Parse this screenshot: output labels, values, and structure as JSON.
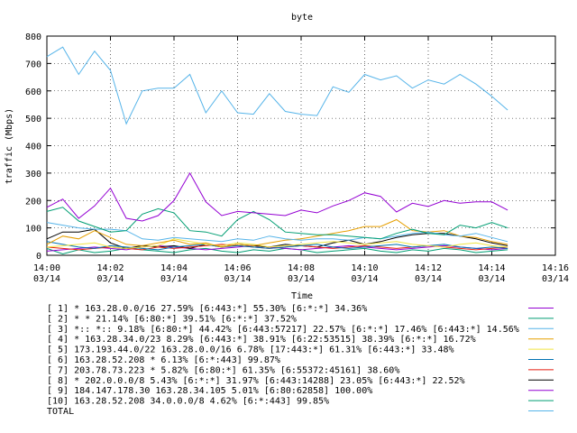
{
  "chart_data": {
    "type": "line",
    "title": "byte",
    "xlabel": "Time",
    "ylabel": "traffic (Mbps)",
    "ylim": [
      0,
      800
    ],
    "xlim": [
      0,
      16
    ],
    "grid": true,
    "legend_placement": "bottom",
    "x_tick_values": [
      0,
      2,
      4,
      6,
      8,
      10,
      12,
      14,
      16
    ],
    "x_tick_labels": [
      [
        "14:00",
        "03/14"
      ],
      [
        "14:02",
        "03/14"
      ],
      [
        "14:04",
        "03/14"
      ],
      [
        "14:06",
        "03/14"
      ],
      [
        "14:08",
        "03/14"
      ],
      [
        "14:10",
        "03/14"
      ],
      [
        "14:12",
        "03/14"
      ],
      [
        "14:14",
        "03/14"
      ],
      [
        "14:16",
        "03/14"
      ]
    ],
    "y_ticks": [
      0,
      100,
      200,
      300,
      400,
      500,
      600,
      700,
      800
    ],
    "x": [
      0,
      0.5,
      1,
      1.5,
      2,
      2.5,
      3,
      3.5,
      4,
      4.5,
      5,
      5.5,
      6,
      6.5,
      7,
      7.5,
      8,
      8.5,
      9,
      9.5,
      10,
      10.5,
      11,
      11.5,
      12,
      12.5,
      13,
      13.5,
      14,
      14.5
    ],
    "series": [
      {
        "name": "[ 1] * 163.28.0.0/16 27.59%  [6:443:*] 55.30% [6:*:*] 34.36%",
        "color": "#9400d3",
        "values": [
          175,
          205,
          135,
          180,
          245,
          135,
          125,
          145,
          200,
          300,
          195,
          145,
          160,
          155,
          150,
          145,
          165,
          155,
          180,
          200,
          228,
          215,
          158,
          190,
          178,
          200,
          190,
          195,
          195,
          165
        ]
      },
      {
        "name": "[ 2] * * 21.14%  [6:80:*] 39.51% [6:*:*] 37.52%",
        "color": "#009e73",
        "values": [
          160,
          175,
          125,
          105,
          85,
          90,
          150,
          170,
          155,
          90,
          85,
          70,
          130,
          160,
          130,
          85,
          80,
          75,
          75,
          70,
          65,
          60,
          80,
          95,
          80,
          75,
          110,
          100,
          120,
          100
        ]
      },
      {
        "name": "[ 3] *:: *:: 9.18%  [6:80:*] 44.42% [6:443:57217] 22.57% [6:*:*] 17.46% [6:443:*] 14.56%",
        "color": "#56b4e9",
        "values": [
          120,
          110,
          100,
          95,
          95,
          90,
          60,
          55,
          65,
          60,
          55,
          50,
          60,
          55,
          70,
          60,
          55,
          60,
          60,
          55,
          65,
          60,
          70,
          80,
          85,
          75,
          70,
          80,
          65,
          50
        ]
      },
      {
        "name": "[ 4] * 163.28.34.0/23 8.29%  [6:443:*] 38.91% [6:22:53515] 38.39% [6:*:*] 16.72%",
        "color": "#e69f00",
        "values": [
          40,
          70,
          60,
          90,
          65,
          40,
          35,
          45,
          55,
          40,
          45,
          30,
          40,
          35,
          45,
          55,
          60,
          70,
          80,
          90,
          105,
          105,
          130,
          90,
          85,
          90,
          70,
          65,
          50,
          40
        ]
      },
      {
        "name": "[ 5] 173.193.44.0/22 163.28.0.0/16 6.78%  [17:443:*] 61.31% [6:443:*] 33.48%",
        "color": "#f0e442",
        "values": [
          30,
          35,
          40,
          45,
          30,
          25,
          30,
          35,
          60,
          50,
          40,
          35,
          45,
          40,
          30,
          35,
          40,
          45,
          50,
          45,
          40,
          45,
          50,
          40,
          35,
          30,
          40,
          45,
          35,
          30
        ]
      },
      {
        "name": "[ 6] 163.28.52.208 * 6.13%  [6:*:443] 99.87%",
        "color": "#0072b2",
        "values": [
          50,
          40,
          30,
          25,
          35,
          30,
          25,
          20,
          30,
          35,
          40,
          30,
          35,
          30,
          25,
          30,
          35,
          40,
          30,
          25,
          30,
          35,
          40,
          30,
          35,
          40,
          30,
          25,
          30,
          25
        ]
      },
      {
        "name": "[ 7] 203.78.73.223 * 5.82%  [6:80:*] 61.35% [6:55372:45161] 38.60%",
        "color": "#e51e10",
        "values": [
          30,
          25,
          20,
          25,
          30,
          25,
          20,
          30,
          25,
          30,
          35,
          40,
          35,
          30,
          25,
          30,
          35,
          30,
          25,
          30,
          35,
          30,
          25,
          30,
          35,
          30,
          25,
          20,
          25,
          30
        ]
      },
      {
        "name": "[ 8] * 202.0.0.0/8 5.43%  [6:*:*] 31.97% [6:443:14288] 23.05% [6:443:*] 22.52%",
        "color": "#000000",
        "values": [
          60,
          85,
          85,
          95,
          45,
          25,
          35,
          30,
          35,
          25,
          40,
          30,
          40,
          35,
          30,
          40,
          35,
          30,
          45,
          55,
          40,
          50,
          65,
          75,
          80,
          80,
          70,
          60,
          45,
          35
        ]
      },
      {
        "name": "[ 9] 184.147.178.30 163.28.34.105 5.01%  [6:80:62858] 100.00%",
        "color": "#9400d3",
        "values": [
          15,
          20,
          25,
          30,
          25,
          20,
          30,
          35,
          30,
          25,
          20,
          25,
          30,
          35,
          30,
          25,
          20,
          25,
          30,
          35,
          30,
          25,
          20,
          25,
          30,
          35,
          30,
          25,
          20,
          25
        ]
      },
      {
        "name": "[10] 163.28.52.208 34.0.0.0/8 4.62%  [6:*:443] 99.85%",
        "color": "#009e73",
        "values": [
          25,
          5,
          20,
          10,
          15,
          25,
          20,
          15,
          10,
          20,
          25,
          15,
          10,
          20,
          15,
          25,
          20,
          10,
          15,
          20,
          25,
          15,
          10,
          20,
          15,
          25,
          20,
          10,
          15,
          20
        ]
      },
      {
        "name": "TOTAL",
        "color": "#56b4e9",
        "values": [
          725,
          760,
          660,
          745,
          675,
          480,
          600,
          610,
          610,
          660,
          520,
          600,
          520,
          515,
          590,
          525,
          515,
          510,
          615,
          595,
          660,
          640,
          655,
          610,
          640,
          625,
          660,
          625,
          580,
          530
        ]
      }
    ]
  }
}
